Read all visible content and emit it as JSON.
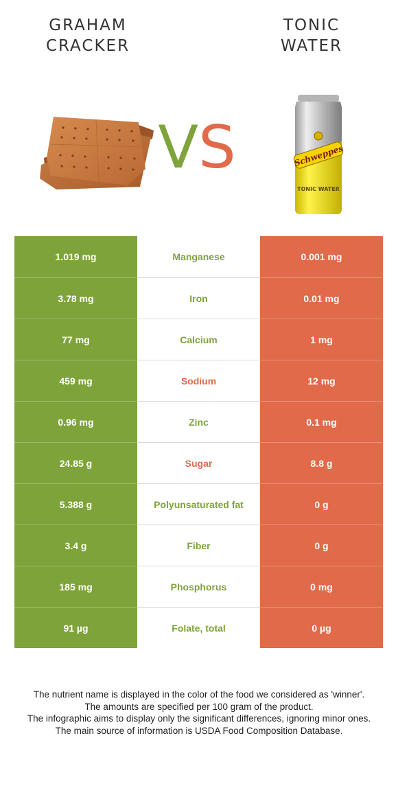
{
  "food_a": {
    "name_line1": "GRAHAM",
    "name_line2": "CRACKER",
    "color": "#7ea33a"
  },
  "food_b": {
    "name_line1": "TONIC",
    "name_line2": "WATER",
    "color": "#e06a4a"
  },
  "vs": {
    "v": "V",
    "s": "S"
  },
  "can": {
    "brand": "Schweppes",
    "product": "TONIC WATER"
  },
  "rows": [
    {
      "a": "1.019 mg",
      "nutrient": "Manganese",
      "b": "0.001 mg",
      "winner": "a"
    },
    {
      "a": "3.78 mg",
      "nutrient": "Iron",
      "b": "0.01 mg",
      "winner": "a"
    },
    {
      "a": "77 mg",
      "nutrient": "Calcium",
      "b": "1 mg",
      "winner": "a"
    },
    {
      "a": "459 mg",
      "nutrient": "Sodium",
      "b": "12 mg",
      "winner": "b"
    },
    {
      "a": "0.96 mg",
      "nutrient": "Zinc",
      "b": "0.1 mg",
      "winner": "a"
    },
    {
      "a": "24.85 g",
      "nutrient": "Sugar",
      "b": "8.8 g",
      "winner": "b"
    },
    {
      "a": "5.388 g",
      "nutrient": "Polyunsaturated fat",
      "b": "0 g",
      "winner": "a"
    },
    {
      "a": "3.4 g",
      "nutrient": "Fiber",
      "b": "0 g",
      "winner": "a"
    },
    {
      "a": "185 mg",
      "nutrient": "Phosphorus",
      "b": "0 mg",
      "winner": "a"
    },
    {
      "a": "91 µg",
      "nutrient": "Folate, total",
      "b": "0 µg",
      "winner": "a"
    }
  ],
  "footnote": {
    "line1": "The nutrient name is displayed in the color of the food we considered as 'winner'.",
    "line2": "The amounts are specified per 100 gram of the product.",
    "line3": "The infographic aims to display only the significant differences, ignoring minor ones.",
    "line4": "The main source of information is USDA Food Composition Database."
  }
}
